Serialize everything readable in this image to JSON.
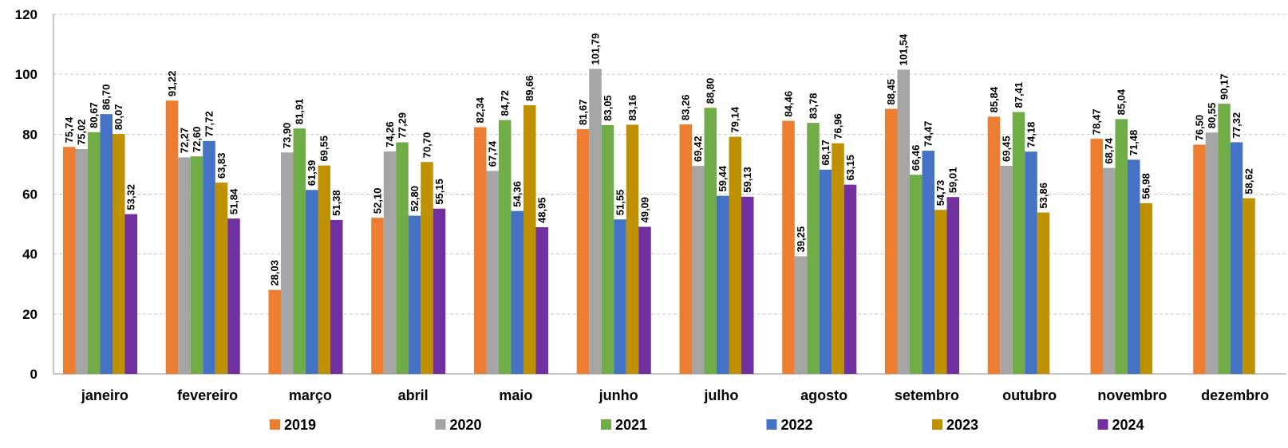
{
  "chart_data": {
    "type": "bar",
    "title": "",
    "xlabel": "",
    "ylabel": "",
    "ylim": [
      0,
      120
    ],
    "yticks": [
      "0",
      "20",
      "40",
      "60",
      "80",
      "100",
      "120"
    ],
    "grid": true,
    "legend_position": "bottom",
    "categories": [
      "janeiro",
      "fevereiro",
      "março",
      "abril",
      "maio",
      "junho",
      "julho",
      "agosto",
      "setembro",
      "outubro",
      "novembro",
      "dezembro"
    ],
    "series": [
      {
        "name": "2019",
        "color": "#ED7D31",
        "values": [
          75.74,
          91.22,
          28.03,
          52.1,
          82.34,
          81.67,
          83.26,
          84.46,
          88.45,
          85.84,
          78.47,
          76.5
        ],
        "labels": [
          "75,74",
          "91,22",
          "28,03",
          "52,10",
          "82,34",
          "81,67",
          "83,26",
          "84,46",
          "88,45",
          "85,84",
          "78,47",
          "76,50"
        ]
      },
      {
        "name": "2020",
        "color": "#A5A5A5",
        "values": [
          75.02,
          72.27,
          73.9,
          74.26,
          67.74,
          101.79,
          69.42,
          39.25,
          101.54,
          69.45,
          68.74,
          80.55
        ],
        "labels": [
          "75,02",
          "72,27",
          "73,90",
          "74,26",
          "67,74",
          "101,79",
          "69,42",
          "39,25",
          "101,54",
          "69,45",
          "68,74",
          "80,55"
        ]
      },
      {
        "name": "2021",
        "color": "#70AD47",
        "values": [
          80.67,
          72.6,
          81.91,
          77.29,
          84.72,
          83.05,
          88.8,
          83.78,
          66.46,
          87.41,
          85.04,
          90.17
        ],
        "labels": [
          "80,67",
          "72,60",
          "81,91",
          "77,29",
          "84,72",
          "83,05",
          "88,80",
          "83,78",
          "66,46",
          "87,41",
          "85,04",
          "90,17"
        ]
      },
      {
        "name": "2022",
        "color": "#4472C4",
        "values": [
          86.7,
          77.72,
          61.39,
          52.8,
          54.36,
          51.55,
          59.44,
          68.17,
          74.47,
          74.18,
          71.48,
          77.32
        ],
        "labels": [
          "86,70",
          "77,72",
          "61,39",
          "52,80",
          "54,36",
          "51,55",
          "59,44",
          "68,17",
          "74,47",
          "74,18",
          "71,48",
          "77,32"
        ]
      },
      {
        "name": "2023",
        "color": "#BF9000",
        "values": [
          80.07,
          63.83,
          69.55,
          70.7,
          89.66,
          83.16,
          79.14,
          76.96,
          54.73,
          53.86,
          56.98,
          58.62
        ],
        "labels": [
          "80,07",
          "63,83",
          "69,55",
          "70,70",
          "89,66",
          "83,16",
          "79,14",
          "76,96",
          "54,73",
          "53,86",
          "56,98",
          "58,62"
        ]
      },
      {
        "name": "2024",
        "color": "#7030A0",
        "values": [
          53.32,
          51.84,
          51.38,
          55.15,
          48.95,
          49.09,
          59.13,
          63.15,
          59.01,
          null,
          null,
          null
        ],
        "labels": [
          "53,32",
          "51,84",
          "51,38",
          "55,15",
          "48,95",
          "49,09",
          "59,13",
          "63,15",
          "59,01",
          "",
          "",
          ""
        ]
      }
    ]
  }
}
